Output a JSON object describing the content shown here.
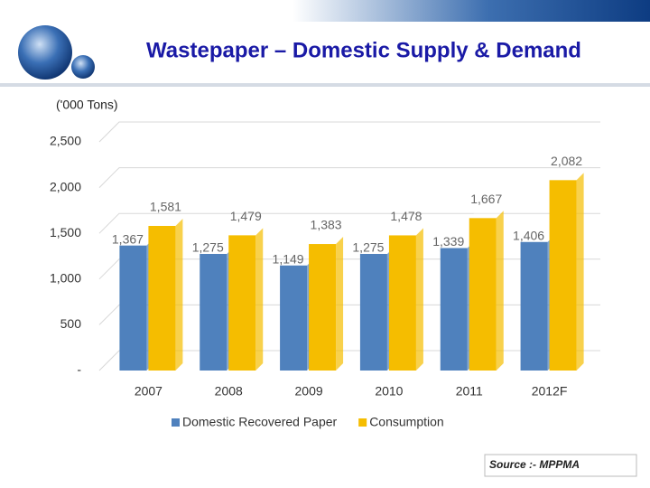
{
  "chart_data": {
    "type": "bar",
    "title": "Wastepaper – Domestic Supply & Demand",
    "subtitle": "('000 Tons)",
    "source": "Source :- MPPMA",
    "categories": [
      "2007",
      "2008",
      "2009",
      "2010",
      "2011",
      "2012F"
    ],
    "series": [
      {
        "name": "Domestic Recovered Paper",
        "color": "#4f81bd",
        "values": [
          1367,
          1275,
          1149,
          1275,
          1339,
          1406
        ],
        "value_labels": [
          "1,367",
          "1,275",
          "1,149",
          "1,275",
          "1,339",
          "1,406"
        ]
      },
      {
        "name": "Consumption",
        "color": "#f5bd00",
        "values": [
          1581,
          1479,
          1383,
          1478,
          1667,
          2082
        ],
        "value_labels": [
          "1,581",
          "1,479",
          "1,383",
          "1,478",
          "1,667",
          "2,082"
        ]
      }
    ],
    "ylim": [
      0,
      2500
    ],
    "yticks": [
      {
        "value": 0,
        "label": "-"
      },
      500,
      {
        "value": 1000,
        "label": "1,000"
      },
      {
        "value": 1500,
        "label": "1,500"
      },
      {
        "value": 2000,
        "label": "2,000"
      },
      {
        "value": 2500,
        "label": "2,500"
      }
    ],
    "grid": true,
    "legend": "bottom"
  }
}
